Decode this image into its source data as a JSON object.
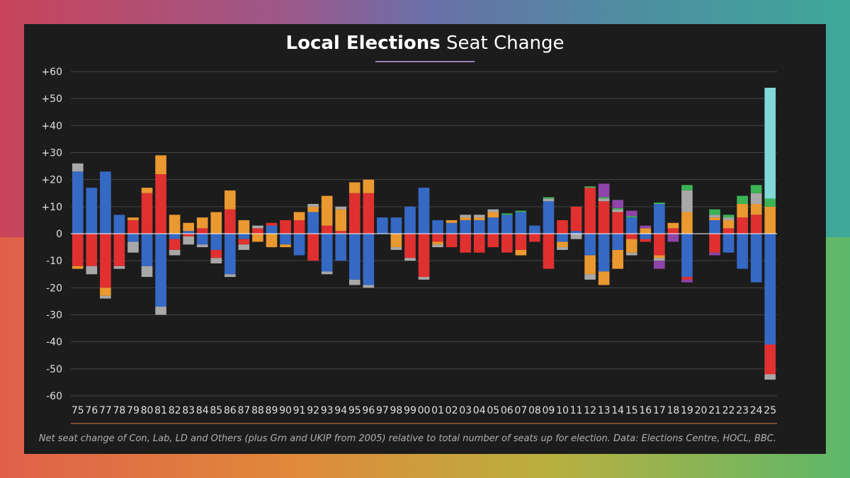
{
  "title": {
    "bold": "Local Elections",
    "light": "Seat Change"
  },
  "footnote": "Net seat change of Con, Lab, LD and Others (plus Grn and UKIP from 2005) relative to total number of seats up for election. Data: Elections Centre, HOCL, BBC.",
  "colors": {
    "con": "#3569c4",
    "lab": "#e03030",
    "ld": "#ea9830",
    "oth": "#a8a8a8",
    "grn": "#3cb456",
    "ukip": "#8e44a8",
    "reform": "#80d8d8",
    "zero_line": "#ffffff",
    "grid": "#444444",
    "tick_text": "#e0e0e0"
  },
  "chart_data": {
    "type": "bar",
    "stacked": true,
    "ylim": [
      -60,
      60
    ],
    "yticks": [
      60,
      50,
      40,
      30,
      20,
      10,
      0,
      -10,
      -20,
      -30,
      -40,
      -50,
      -60
    ],
    "ytick_labels": [
      "+60",
      "+50",
      "+40",
      "+30",
      "+20",
      "+10",
      "0",
      "-10",
      "-20",
      "-30",
      "-40",
      "-50",
      "-60"
    ],
    "categories": [
      "75",
      "76",
      "77",
      "78",
      "79",
      "80",
      "81",
      "82",
      "83",
      "84",
      "85",
      "86",
      "87",
      "88",
      "89",
      "90",
      "91",
      "92",
      "93",
      "94",
      "95",
      "96",
      "97",
      "98",
      "99",
      "00",
      "01",
      "02",
      "03",
      "04",
      "05",
      "06",
      "07",
      "08",
      "09",
      "10",
      "11",
      "12",
      "13",
      "14",
      "15",
      "16",
      "17",
      "18",
      "19",
      "20",
      "21",
      "22",
      "23",
      "24",
      "25"
    ],
    "series": [
      {
        "key": "con",
        "values": [
          23,
          17,
          23,
          7,
          -3,
          -12,
          -27,
          -2,
          1,
          -4,
          -6,
          -15,
          -2,
          0,
          3,
          -4,
          -8,
          8,
          -14,
          -10,
          -17,
          -19,
          6,
          6,
          10,
          17,
          5,
          4,
          5,
          5,
          6,
          7,
          8,
          3,
          12,
          -3,
          1,
          -8,
          -14,
          -6,
          6,
          -2,
          11,
          0,
          -16,
          0,
          5,
          -7,
          -13,
          -18,
          -41
        ]
      },
      {
        "key": "lab",
        "values": [
          -12,
          -12,
          -20,
          -12,
          5,
          15,
          22,
          -4,
          -1,
          2,
          -3,
          9,
          -2,
          2,
          1,
          5,
          5,
          -10,
          3,
          1,
          15,
          15,
          0,
          0,
          -9,
          -16,
          -3,
          -5,
          -7,
          -7,
          -5,
          -7,
          -6,
          -3,
          -13,
          5,
          9,
          17,
          12,
          8,
          -2,
          -1,
          -8,
          2,
          -1,
          0,
          -7,
          2,
          6,
          7,
          -11
        ]
      },
      {
        "key": "ld",
        "values": [
          -1,
          0,
          -3,
          0,
          1,
          2,
          7,
          7,
          3,
          4,
          8,
          7,
          5,
          -3,
          -5,
          -1,
          3,
          2,
          11,
          8,
          4,
          5,
          0,
          -5,
          0,
          0,
          -1,
          1,
          1,
          1,
          2,
          0,
          -2,
          0,
          0,
          -2,
          0,
          -7,
          -5,
          -7,
          -5,
          2,
          -1,
          2,
          8,
          0,
          1,
          3,
          5,
          4,
          10
        ]
      },
      {
        "key": "oth",
        "values": [
          3,
          -3,
          -1,
          -1,
          -4,
          -4,
          -3,
          -2,
          -3,
          -1,
          -2,
          -1,
          -2,
          1,
          0,
          0,
          0,
          1,
          -1,
          1,
          -2,
          -1,
          0,
          -1,
          -1,
          -1,
          -1,
          0,
          1,
          1,
          1,
          0,
          0,
          0,
          1,
          -1,
          -2,
          -2,
          1,
          1,
          -1,
          0,
          -1,
          0,
          8,
          0,
          1,
          1,
          0,
          4,
          -2
        ]
      },
      {
        "key": "grn",
        "values": [
          0,
          0,
          0,
          0,
          0,
          0,
          0,
          0,
          0,
          0,
          0,
          0,
          0,
          0,
          0,
          0,
          0,
          0,
          0,
          0,
          0,
          0,
          0,
          0,
          0,
          0,
          0,
          0,
          0,
          0,
          0,
          0.5,
          0.5,
          0,
          0.5,
          0,
          0,
          0.5,
          0.5,
          0.5,
          0.5,
          0,
          0.5,
          0,
          2,
          0,
          2,
          1,
          3,
          3,
          3
        ]
      },
      {
        "key": "ukip",
        "values": [
          0,
          0,
          0,
          0,
          0,
          0,
          0,
          0,
          0,
          0,
          0,
          0,
          0,
          0,
          0,
          0,
          0,
          0,
          0,
          0,
          0,
          0,
          0,
          0,
          0,
          0,
          0,
          0,
          0,
          0,
          0,
          0,
          0,
          0,
          0,
          0,
          0,
          0,
          5,
          3,
          2,
          1,
          -3,
          -3,
          -1,
          0,
          -1,
          0,
          0,
          0,
          0
        ]
      },
      {
        "key": "reform",
        "values": [
          0,
          0,
          0,
          0,
          0,
          0,
          0,
          0,
          0,
          0,
          0,
          0,
          0,
          0,
          0,
          0,
          0,
          0,
          0,
          0,
          0,
          0,
          0,
          0,
          0,
          0,
          0,
          0,
          0,
          0,
          0,
          0,
          0,
          0,
          0,
          0,
          0,
          0,
          0,
          0,
          0,
          0,
          0,
          0,
          0,
          0,
          0,
          0,
          0,
          0,
          41
        ]
      }
    ]
  }
}
